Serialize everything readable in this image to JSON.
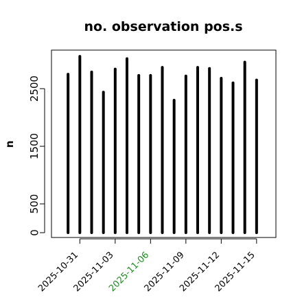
{
  "chart_data": {
    "type": "bar",
    "title": "no. observation pos.s",
    "ylabel": "n",
    "xlabel": "",
    "ylim": [
      0,
      3050
    ],
    "yticks": [
      0,
      500,
      1500,
      2500
    ],
    "xlim": [
      "2025-10-29",
      "2025-11-16"
    ],
    "x": [
      "2025-10-30",
      "2025-10-31",
      "2025-11-01",
      "2025-11-02",
      "2025-11-03",
      "2025-11-04",
      "2025-11-05",
      "2025-11-06",
      "2025-11-07",
      "2025-11-08",
      "2025-11-09",
      "2025-11-10",
      "2025-11-11",
      "2025-11-12",
      "2025-11-13",
      "2025-11-14",
      "2025-11-15"
    ],
    "values": [
      2750,
      3060,
      2790,
      2440,
      2840,
      3020,
      2730,
      2730,
      2870,
      2300,
      2720,
      2870,
      2850,
      2680,
      2600,
      2960,
      2650
    ],
    "xticks": [
      "2025-10-31",
      "2025-11-03",
      "2025-11-06",
      "2025-11-09",
      "2025-11-12",
      "2025-11-15"
    ],
    "highlight_tick": "2025-11-06",
    "bar_color": "#000000",
    "highlight_color": "#1f8c1f",
    "grid": false,
    "legend": "none"
  }
}
